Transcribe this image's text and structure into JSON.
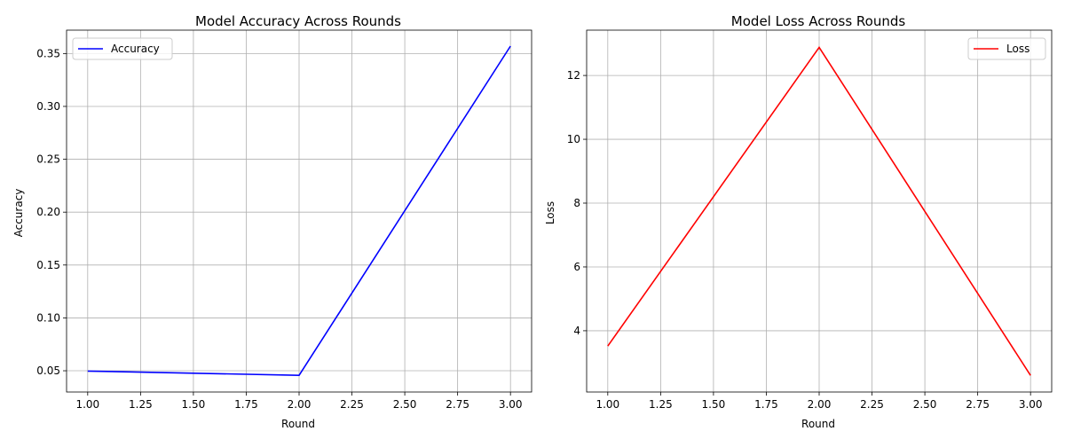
{
  "chart_data": [
    {
      "type": "line",
      "title": "Model Accuracy Across Rounds",
      "xlabel": "Round",
      "ylabel": "Accuracy",
      "xlim": [
        0.9,
        3.1
      ],
      "ylim": [
        0.0299,
        0.3721
      ],
      "xticks": [
        1.0,
        1.25,
        1.5,
        1.75,
        2.0,
        2.25,
        2.5,
        2.75,
        3.0
      ],
      "xtick_labels": [
        "1.00",
        "1.25",
        "1.50",
        "1.75",
        "2.00",
        "2.25",
        "2.50",
        "2.75",
        "3.00"
      ],
      "yticks": [
        0.05,
        0.1,
        0.15,
        0.2,
        0.25,
        0.3,
        0.35
      ],
      "ytick_labels": [
        "0.05",
        "0.10",
        "0.15",
        "0.20",
        "0.25",
        "0.30",
        "0.35"
      ],
      "grid": true,
      "legend_position": "top-left",
      "series": [
        {
          "name": "Accuracy",
          "color": "#0000ff",
          "x": [
            1,
            2,
            3
          ],
          "values": [
            0.0497,
            0.0457,
            0.357
          ]
        }
      ]
    },
    {
      "type": "line",
      "title": "Model Loss Across Rounds",
      "xlabel": "Round",
      "ylabel": "Loss",
      "xlim": [
        0.9,
        3.1
      ],
      "ylim": [
        2.08,
        13.42
      ],
      "xticks": [
        1.0,
        1.25,
        1.5,
        1.75,
        2.0,
        2.25,
        2.5,
        2.75,
        3.0
      ],
      "xtick_labels": [
        "1.00",
        "1.25",
        "1.50",
        "1.75",
        "2.00",
        "2.25",
        "2.50",
        "2.75",
        "3.00"
      ],
      "yticks": [
        4,
        6,
        8,
        10,
        12
      ],
      "ytick_labels": [
        "4",
        "6",
        "8",
        "10",
        "12"
      ],
      "grid": true,
      "legend_position": "top-right",
      "series": [
        {
          "name": "Loss",
          "color": "#ff0000",
          "x": [
            1,
            2,
            3
          ],
          "values": [
            3.52,
            12.88,
            2.6
          ]
        }
      ]
    }
  ]
}
